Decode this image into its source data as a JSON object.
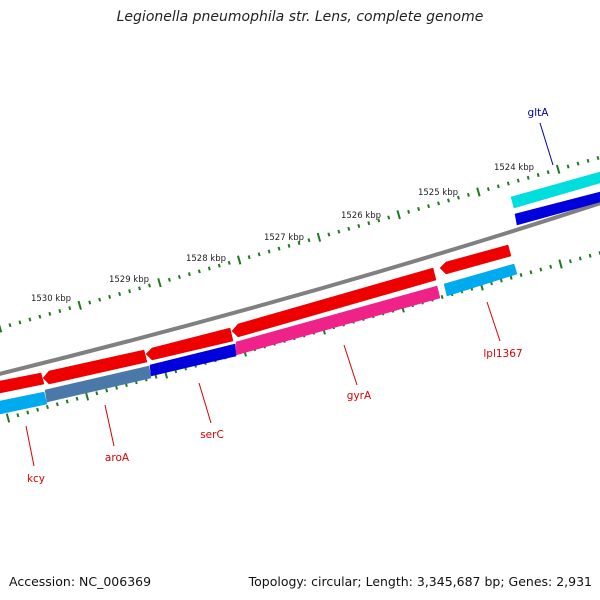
{
  "title": "Legionella pneumophila str. Lens, complete genome",
  "accession": "Accession: NC_006369",
  "summary": "Topology: circular; Length: 3,345,687 bp; Genes: 2,931",
  "colors": {
    "backbone": "#808080",
    "tick": "#1e7a1e",
    "cds_forward": "#ee0000",
    "cds_forward_light": "#ff7070",
    "label_red": "#dd0000",
    "label_blue": "#0000aa",
    "cyan": "#00dddd",
    "deep_blue": "#0000dd",
    "light_blue": "#00aaee",
    "steel_blue": "#4a78a8",
    "magenta": "#ee2288"
  },
  "scale_labels": [
    "1524 kbp",
    "1525 kbp",
    "1526 kbp",
    "1527 kbp",
    "1528 kbp",
    "1529 kbp",
    "1530 kbp"
  ],
  "genes": [
    {
      "name": "gltA",
      "color": "label_blue"
    },
    {
      "name": "lpl1367",
      "color": "label_red"
    },
    {
      "name": "gyrA",
      "color": "label_red"
    },
    {
      "name": "serC",
      "color": "label_red"
    },
    {
      "name": "aroA",
      "color": "label_red"
    },
    {
      "name": "kcy",
      "color": "label_red"
    }
  ]
}
